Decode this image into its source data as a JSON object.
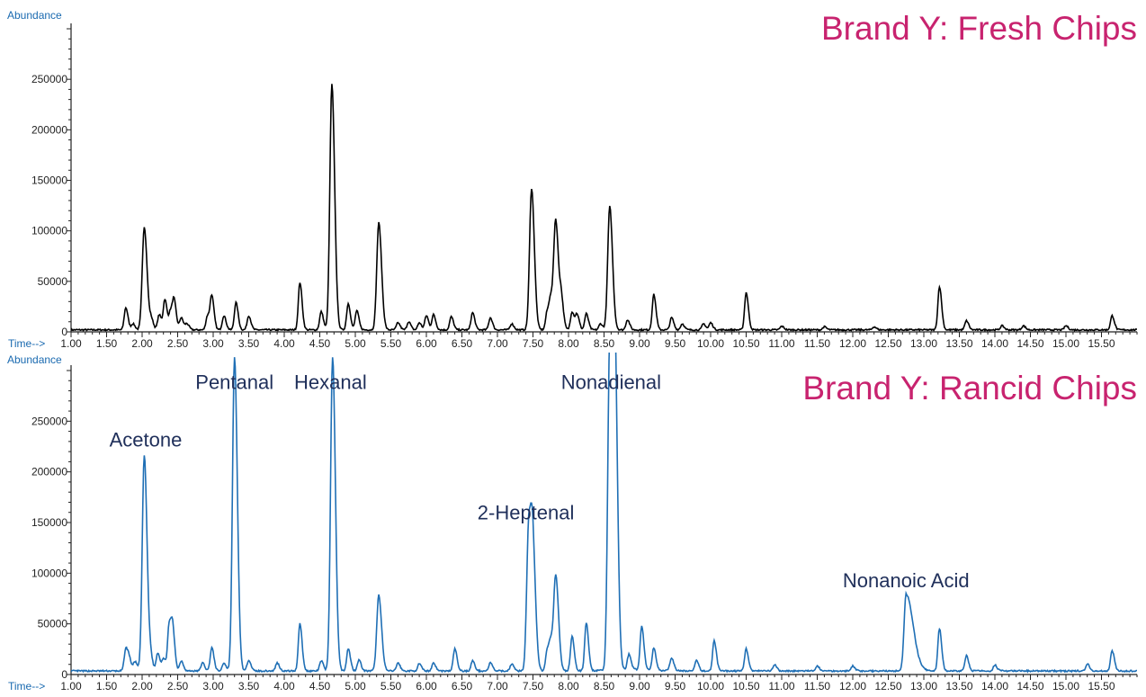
{
  "colors": {
    "axis": "#222222",
    "axis_label": "#1a6ab0",
    "title": "#c8236f",
    "annotation": "#1f2f5a",
    "series_fresh": "#000000",
    "series_rancid": "#1f6fb5"
  },
  "chart_data": [
    {
      "type": "line",
      "title": "Brand Y: Fresh Chips",
      "ylabel": "Abundance",
      "xlabel": "Time-->",
      "xlim": [
        1.0,
        16.0
      ],
      "ylim": [
        0,
        300000
      ],
      "yticks": [
        0,
        50000,
        100000,
        150000,
        200000,
        250000
      ],
      "xticks": [
        1.0,
        1.5,
        2.0,
        2.5,
        3.0,
        3.5,
        4.0,
        4.5,
        5.0,
        5.5,
        6.0,
        6.5,
        7.0,
        7.5,
        8.0,
        8.5,
        9.0,
        9.5,
        10.0,
        10.5,
        11.0,
        11.5,
        12.0,
        12.5,
        13.0,
        13.5,
        14.0,
        14.5,
        15.0,
        15.5
      ],
      "baseline": 2000,
      "annotations": [],
      "peaks": [
        [
          1.77,
          22000
        ],
        [
          1.87,
          6000
        ],
        [
          2.03,
          102000
        ],
        [
          2.13,
          10000
        ],
        [
          2.24,
          15000
        ],
        [
          2.32,
          30000
        ],
        [
          2.4,
          18000
        ],
        [
          2.45,
          27000
        ],
        [
          2.55,
          12000
        ],
        [
          2.63,
          6000
        ],
        [
          2.92,
          14000
        ],
        [
          2.98,
          33000
        ],
        [
          3.15,
          14000
        ],
        [
          3.32,
          27000
        ],
        [
          3.5,
          14000
        ],
        [
          4.22,
          47000
        ],
        [
          4.52,
          18000
        ],
        [
          4.67,
          243000
        ],
        [
          4.9,
          26000
        ],
        [
          5.02,
          19000
        ],
        [
          5.33,
          106000
        ],
        [
          5.6,
          7000
        ],
        [
          5.75,
          8000
        ],
        [
          5.9,
          7000
        ],
        [
          6.0,
          14000
        ],
        [
          6.1,
          15000
        ],
        [
          6.35,
          13000
        ],
        [
          6.65,
          17000
        ],
        [
          6.9,
          12000
        ],
        [
          7.2,
          6000
        ],
        [
          7.48,
          140000
        ],
        [
          7.7,
          18000
        ],
        [
          7.75,
          27000
        ],
        [
          7.82,
          108000
        ],
        [
          7.9,
          27000
        ],
        [
          8.05,
          18000
        ],
        [
          8.12,
          15000
        ],
        [
          8.25,
          16000
        ],
        [
          8.45,
          6000
        ],
        [
          8.58,
          122000
        ],
        [
          8.83,
          10000
        ],
        [
          9.2,
          35000
        ],
        [
          9.45,
          12000
        ],
        [
          9.6,
          6000
        ],
        [
          9.9,
          6000
        ],
        [
          10.0,
          7000
        ],
        [
          10.5,
          37000
        ],
        [
          11.0,
          3500
        ],
        [
          11.6,
          3000
        ],
        [
          12.3,
          3000
        ],
        [
          13.22,
          43000
        ],
        [
          13.6,
          9000
        ],
        [
          14.1,
          4000
        ],
        [
          14.4,
          4000
        ],
        [
          15.0,
          4000
        ],
        [
          15.65,
          14000
        ]
      ]
    },
    {
      "type": "line",
      "title": "Brand Y: Rancid Chips",
      "ylabel": "Abundance",
      "xlabel": "Time-->",
      "xlim": [
        1.0,
        16.0
      ],
      "ylim": [
        0,
        300000
      ],
      "yticks": [
        0,
        50000,
        100000,
        150000,
        200000,
        250000
      ],
      "xticks": [
        1.0,
        1.5,
        2.0,
        2.5,
        3.0,
        3.5,
        4.0,
        4.5,
        5.0,
        5.5,
        6.0,
        6.5,
        7.0,
        7.5,
        8.0,
        8.5,
        9.0,
        9.5,
        10.0,
        10.5,
        11.0,
        11.5,
        12.0,
        12.5,
        13.0,
        13.5,
        14.0,
        14.5,
        15.0,
        15.5
      ],
      "baseline": 3500,
      "annotations": [
        {
          "label": "Acetone",
          "x": 2.05,
          "y": 225000
        },
        {
          "label": "Pentanal",
          "x": 3.3,
          "y": 282000
        },
        {
          "label": "Hexanal",
          "x": 4.65,
          "y": 282000
        },
        {
          "label": "2-Heptenal",
          "x": 7.4,
          "y": 153000
        },
        {
          "label": "Nonadienal",
          "x": 8.6,
          "y": 282000
        },
        {
          "label": "Nonanoic Acid",
          "x": 12.75,
          "y": 86000
        }
      ],
      "peaks": [
        [
          1.77,
          22000
        ],
        [
          1.82,
          10000
        ],
        [
          1.9,
          9000
        ],
        [
          2.03,
          213000
        ],
        [
          2.12,
          12000
        ],
        [
          2.22,
          18000
        ],
        [
          2.3,
          12000
        ],
        [
          2.38,
          45000
        ],
        [
          2.43,
          38000
        ],
        [
          2.55,
          10000
        ],
        [
          2.85,
          8000
        ],
        [
          2.98,
          23000
        ],
        [
          3.15,
          8000
        ],
        [
          3.3,
          310000
        ],
        [
          3.5,
          11000
        ],
        [
          3.9,
          8000
        ],
        [
          4.22,
          47000
        ],
        [
          4.52,
          10000
        ],
        [
          4.68,
          310000
        ],
        [
          4.9,
          22000
        ],
        [
          5.05,
          11000
        ],
        [
          5.33,
          75000
        ],
        [
          5.6,
          8000
        ],
        [
          5.9,
          7000
        ],
        [
          6.1,
          8000
        ],
        [
          6.4,
          22000
        ],
        [
          6.65,
          10000
        ],
        [
          6.9,
          8000
        ],
        [
          7.2,
          7000
        ],
        [
          7.44,
          143000
        ],
        [
          7.5,
          105000
        ],
        [
          7.7,
          20000
        ],
        [
          7.75,
          25000
        ],
        [
          7.82,
          94000
        ],
        [
          8.05,
          34000
        ],
        [
          8.25,
          48000
        ],
        [
          8.58,
          320000
        ],
        [
          8.65,
          310000
        ],
        [
          8.85,
          15000
        ],
        [
          9.03,
          43000
        ],
        [
          9.2,
          22000
        ],
        [
          9.45,
          13000
        ],
        [
          9.8,
          10000
        ],
        [
          10.05,
          30000
        ],
        [
          10.5,
          22000
        ],
        [
          10.9,
          6000
        ],
        [
          11.5,
          5000
        ],
        [
          12.0,
          5000
        ],
        [
          12.75,
          76000
        ],
        [
          13.22,
          42000
        ],
        [
          13.6,
          15000
        ],
        [
          14.0,
          6000
        ],
        [
          15.3,
          7000
        ],
        [
          15.65,
          20000
        ]
      ]
    }
  ]
}
